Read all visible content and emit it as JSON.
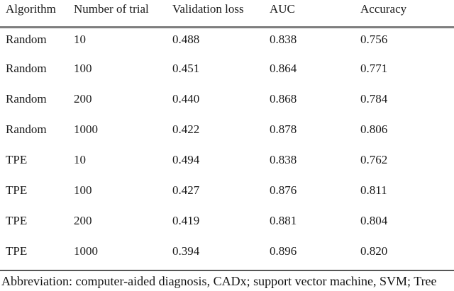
{
  "table": {
    "columns": [
      "Algorithm",
      "Number of trial",
      "Validation loss",
      "AUC",
      "Accuracy"
    ],
    "rows": [
      [
        "Random",
        "10",
        "0.488",
        "0.838",
        "0.756"
      ],
      [
        "Random",
        "100",
        "0.451",
        "0.864",
        "0.771"
      ],
      [
        "Random",
        "200",
        "0.440",
        "0.868",
        "0.784"
      ],
      [
        "Random",
        "1000",
        "0.422",
        "0.878",
        "0.806"
      ],
      [
        "TPE",
        "10",
        "0.494",
        "0.838",
        "0.762"
      ],
      [
        "TPE",
        "100",
        "0.427",
        "0.876",
        "0.811"
      ],
      [
        "TPE",
        "200",
        "0.419",
        "0.881",
        "0.804"
      ],
      [
        "TPE",
        "1000",
        "0.394",
        "0.896",
        "0.820"
      ]
    ]
  },
  "footnote": "Abbreviation: computer-aided diagnosis, CADx; support vector machine, SVM; Tree",
  "colors": {
    "background": "#ffffff",
    "text": "#1a1a1a",
    "rule_top": "#7e7e7e",
    "rule_bottom": "#565656"
  },
  "chart_data": {
    "type": "table",
    "title": "",
    "columns": [
      "Algorithm",
      "Number of trial",
      "Validation loss",
      "AUC",
      "Accuracy"
    ],
    "series": [
      {
        "name": "Random",
        "trials": [
          10,
          100,
          200,
          1000
        ],
        "validation_loss": [
          0.488,
          0.451,
          0.44,
          0.422
        ],
        "auc": [
          0.838,
          0.864,
          0.868,
          0.878
        ],
        "accuracy": [
          0.756,
          0.771,
          0.784,
          0.806
        ]
      },
      {
        "name": "TPE",
        "trials": [
          10,
          100,
          200,
          1000
        ],
        "validation_loss": [
          0.494,
          0.427,
          0.419,
          0.394
        ],
        "auc": [
          0.838,
          0.876,
          0.881,
          0.896
        ],
        "accuracy": [
          0.762,
          0.811,
          0.804,
          0.82
        ]
      }
    ]
  }
}
